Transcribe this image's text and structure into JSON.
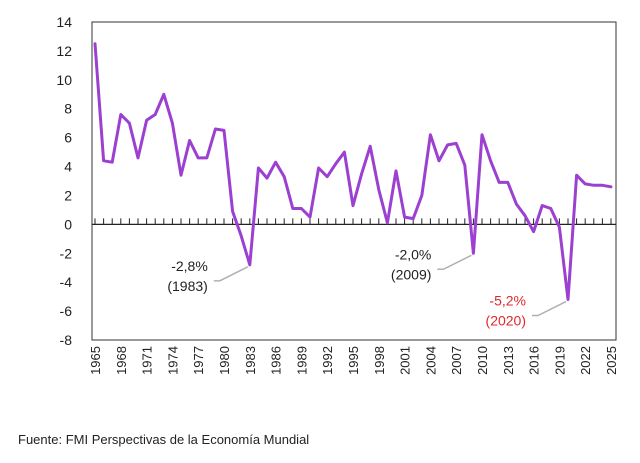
{
  "chart_data": {
    "type": "line",
    "title": "",
    "xlabel": "",
    "ylabel": "",
    "ylim": [
      -8,
      14
    ],
    "xlim": [
      1965,
      2025
    ],
    "y_ticks": [
      "14",
      "12",
      "10",
      "8",
      "6",
      "4",
      "2",
      "0",
      "-2",
      "-4",
      "-6",
      "-8"
    ],
    "x_ticks": [
      "1965",
      "1968",
      "1971",
      "1974",
      "1977",
      "1980",
      "1983",
      "1986",
      "1989",
      "1992",
      "1995",
      "1998",
      "2001",
      "2004",
      "2007",
      "2010",
      "2013",
      "2016",
      "2019",
      "2022",
      "2025"
    ],
    "grid": false,
    "series": [
      {
        "color": "#9B40D0",
        "x": [
          1965,
          1966,
          1967,
          1968,
          1969,
          1970,
          1971,
          1972,
          1973,
          1974,
          1975,
          1976,
          1977,
          1978,
          1979,
          1980,
          1981,
          1982,
          1983,
          1984,
          1985,
          1986,
          1987,
          1988,
          1989,
          1990,
          1991,
          1992,
          1993,
          1994,
          1995,
          1996,
          1997,
          1998,
          1999,
          2000,
          2001,
          2002,
          2003,
          2004,
          2005,
          2006,
          2007,
          2008,
          2009,
          2010,
          2011,
          2012,
          2013,
          2014,
          2015,
          2016,
          2017,
          2018,
          2019,
          2020,
          2021,
          2022,
          2023,
          2024,
          2025
        ],
        "y": [
          12.5,
          4.4,
          4.3,
          7.6,
          7.0,
          4.6,
          7.2,
          7.6,
          9.0,
          7.0,
          3.4,
          5.8,
          4.6,
          4.6,
          6.6,
          6.5,
          0.9,
          -0.8,
          -2.8,
          3.9,
          3.2,
          4.3,
          3.3,
          1.1,
          1.1,
          0.5,
          3.9,
          3.3,
          4.2,
          5.0,
          1.3,
          3.5,
          5.4,
          2.4,
          0.1,
          3.7,
          0.5,
          0.4,
          2.0,
          6.2,
          4.4,
          5.5,
          5.6,
          4.1,
          -2.0,
          6.2,
          4.4,
          2.9,
          2.9,
          1.4,
          0.6,
          -0.5,
          1.3,
          1.1,
          -0.2,
          -5.2,
          3.4,
          2.8,
          2.7,
          2.7,
          2.6
        ]
      }
    ],
    "annotations": [
      {
        "label": "-2,8%",
        "sub": "(1983)",
        "x": 1983,
        "y": -2.8,
        "color": "#222222"
      },
      {
        "label": "-2,0%",
        "sub": "(2009)",
        "x": 2009,
        "y": -2.0,
        "color": "#222222"
      },
      {
        "label": "-5,2%",
        "sub": "(2020)",
        "x": 2020,
        "y": -5.2,
        "color": "#E0282E"
      }
    ]
  },
  "source": "Fuente: FMI Perspectivas de la Economía Mundial"
}
